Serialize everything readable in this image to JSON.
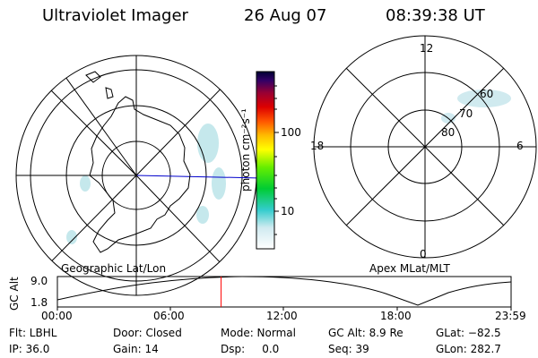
{
  "header": {
    "instrument": "Ultraviolet Imager",
    "date": "26 Aug 07",
    "time": "08:39:38 UT"
  },
  "colorbar": {
    "unit_label": "photon cm⁻²s⁻¹",
    "ticks": [
      {
        "value": 10,
        "label": "10"
      },
      {
        "value": 100,
        "label": "100"
      }
    ],
    "log_scale": true
  },
  "left_map": {
    "caption": "Geographic Lat/Lon"
  },
  "right_map": {
    "caption": "Apex MLat/MLT",
    "mlt_labels": {
      "top": "12",
      "right": "6",
      "bottom": "0",
      "left": "18"
    },
    "lat_labels": [
      "60",
      "70",
      "80"
    ]
  },
  "altitude_plot": {
    "ylabel": "GC Alt",
    "yticks": [
      "9.0",
      "1.8"
    ],
    "xticks": [
      "00:00",
      "06:00",
      "12:00",
      "18:00",
      "23:59"
    ],
    "marker_time_hours": 8.66,
    "marker_color": "#ff0000"
  },
  "status": {
    "row1": {
      "filter": "Flt: LBHL",
      "door": "Door: Closed",
      "mode": "Mode: Normal",
      "gc_alt": "GC Alt: 8.9 Re",
      "glat": "GLat: −82.5"
    },
    "row2": {
      "ip": "IP: 36.0",
      "gain": "Gain: 14",
      "dsp": "Dsp:     0.0",
      "seq": "Seq: 39",
      "glon": "GLon: 282.7"
    }
  }
}
